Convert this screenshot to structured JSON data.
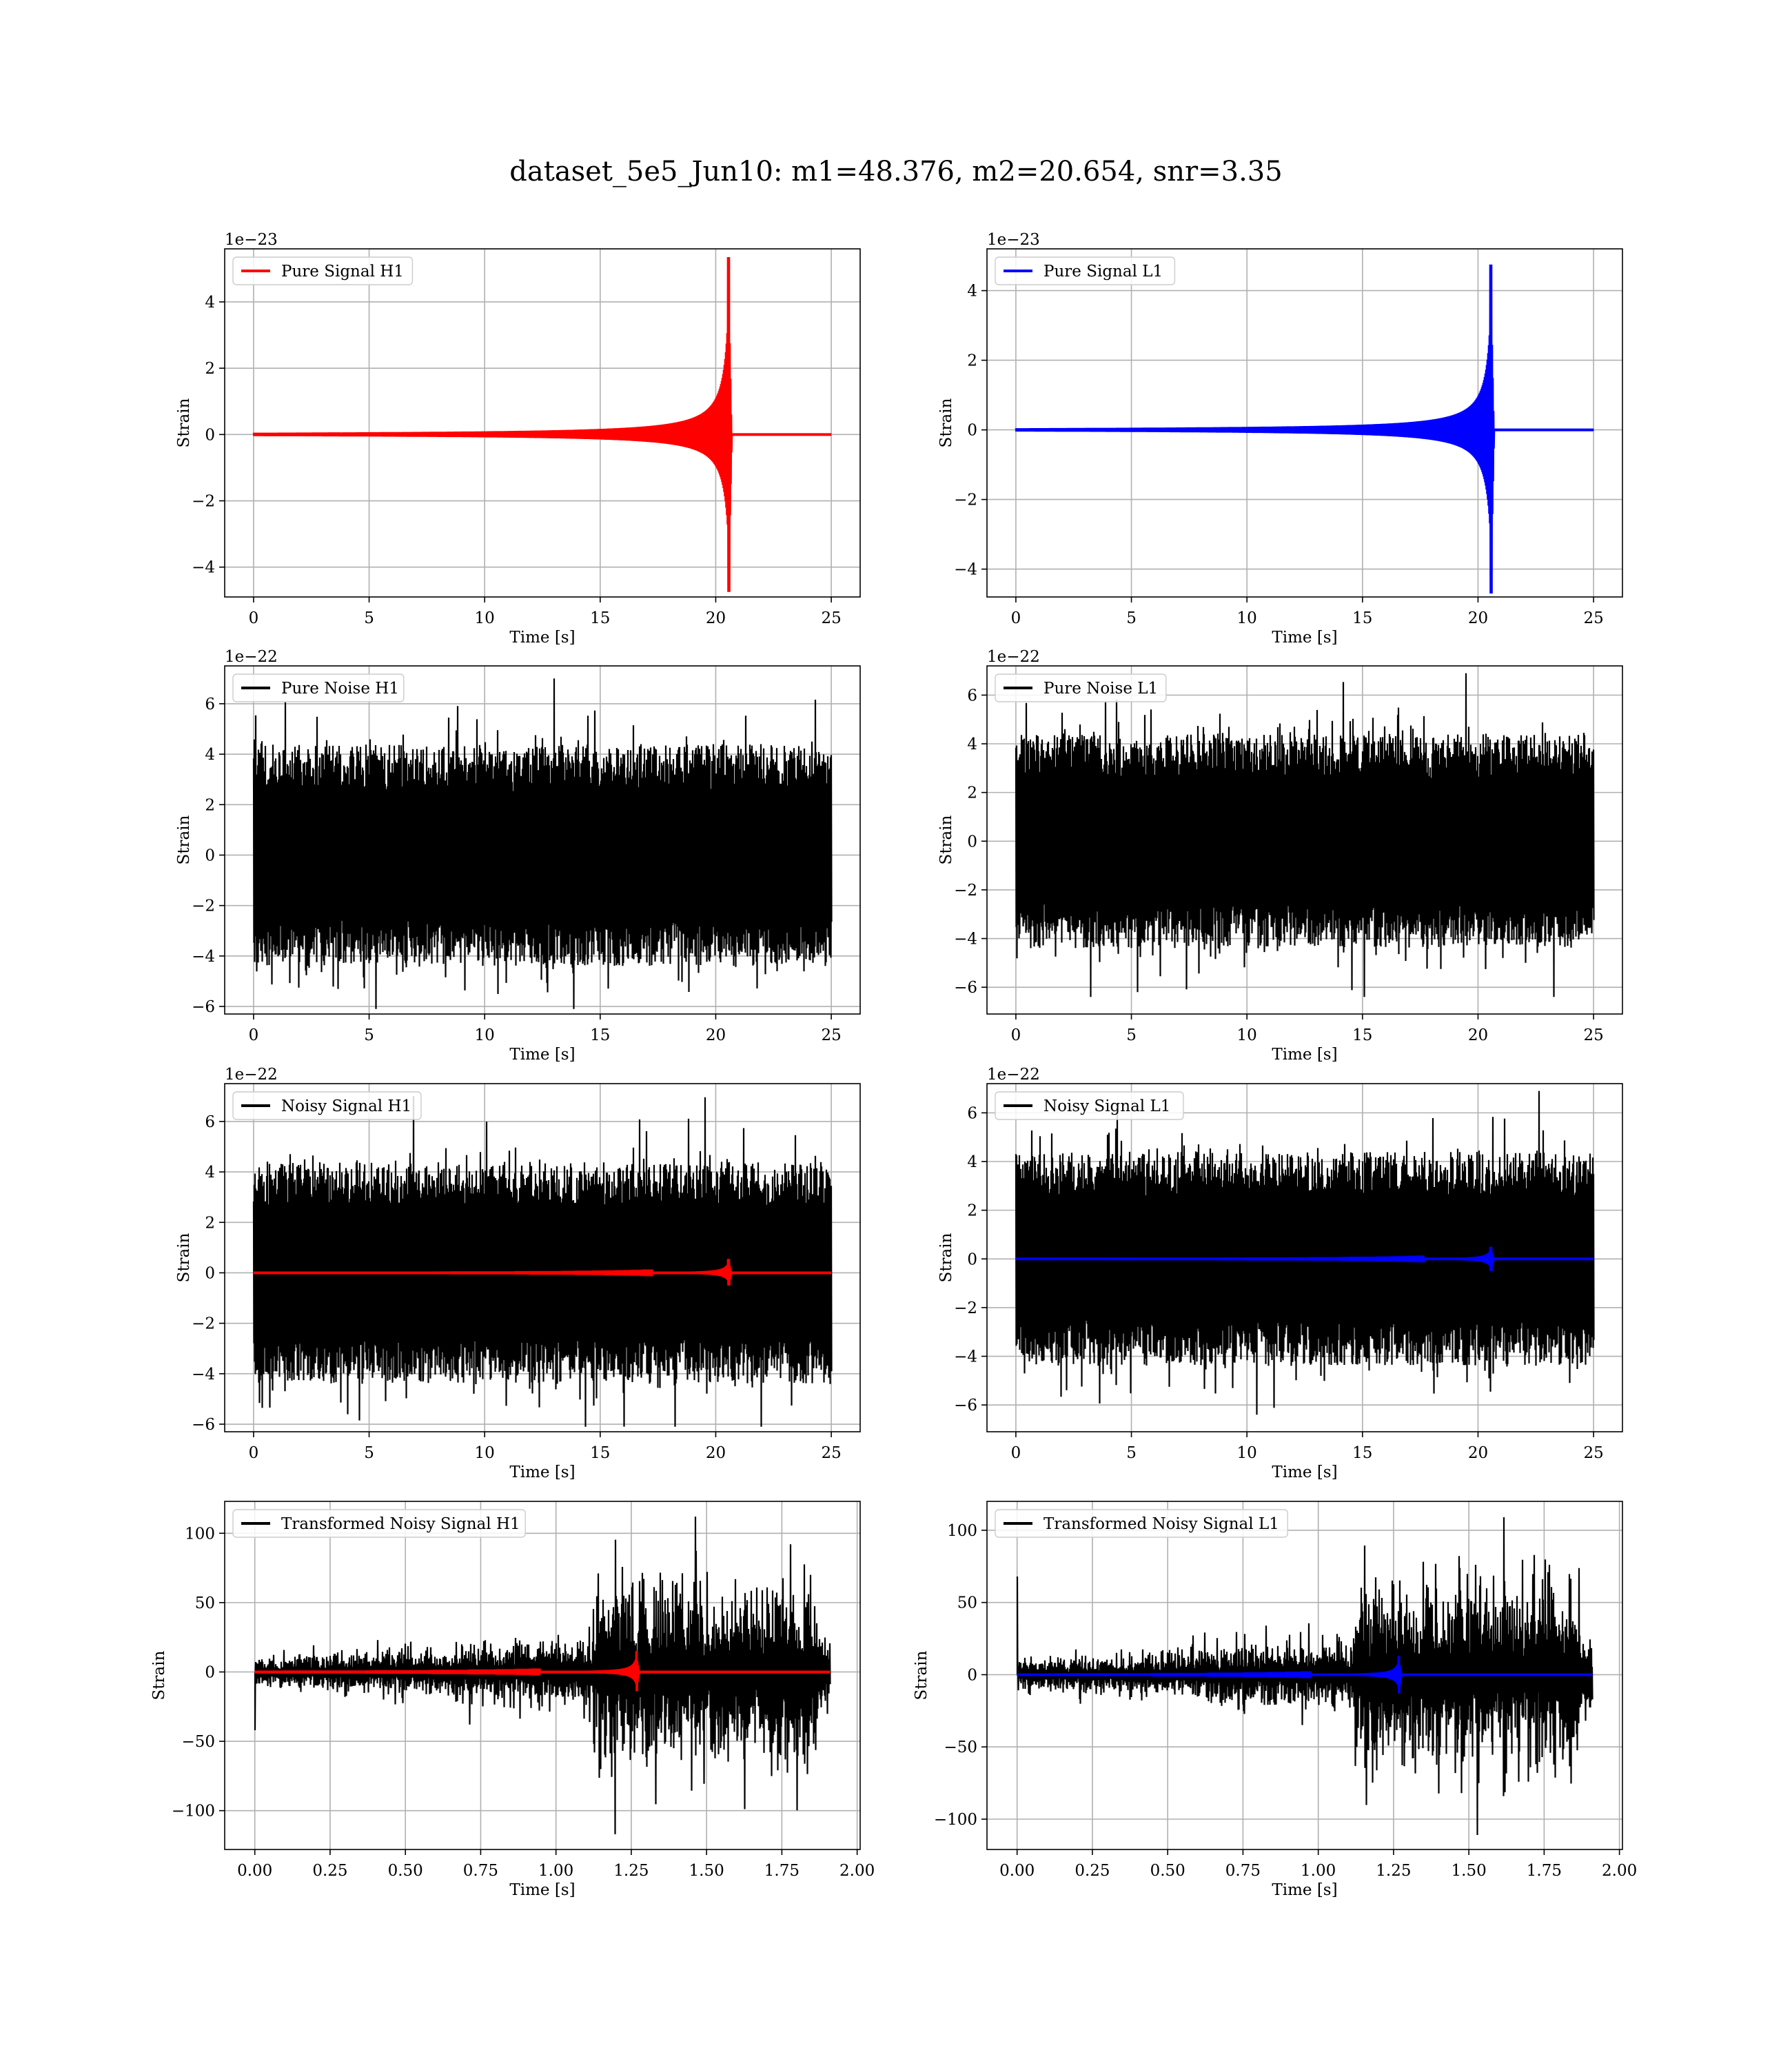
{
  "figure": {
    "title": "dataset_5e5_Jun10: m1=48.376, m2=20.654, snr=3.35"
  },
  "colors": {
    "h1_signal": "#ff0000",
    "l1_signal": "#0000ff",
    "noise": "#000000",
    "grid": "#b0b0b0"
  },
  "chart_data": [
    {
      "id": "pure-signal-h1",
      "type": "line",
      "legend": "Pure Signal H1",
      "xlabel": "Time [s]",
      "ylabel": "Strain",
      "offset_text": "1e−23",
      "xlim": [
        -1.25,
        26.25
      ],
      "ylim": [
        -4.9,
        5.6
      ],
      "xticks": [
        0,
        5,
        10,
        15,
        20,
        25
      ],
      "xtick_labels": [
        "0",
        "5",
        "10",
        "15",
        "20",
        "25"
      ],
      "yticks": [
        -4,
        -2,
        0,
        2,
        4
      ],
      "ytick_labels": [
        "−4",
        "−2",
        "0",
        "2",
        "4"
      ],
      "series": [
        {
          "kind": "chirp",
          "color": "#ff0000",
          "t_start": 0,
          "t_end": 25,
          "merger": 20.6,
          "peak": 5.35,
          "trough": -4.75
        }
      ]
    },
    {
      "id": "pure-signal-l1",
      "type": "line",
      "legend": "Pure Signal L1",
      "xlabel": "Time [s]",
      "ylabel": "Strain",
      "offset_text": "1e−23",
      "xlim": [
        -1.25,
        26.25
      ],
      "ylim": [
        -4.8,
        5.2
      ],
      "xticks": [
        0,
        5,
        10,
        15,
        20,
        25
      ],
      "xtick_labels": [
        "0",
        "5",
        "10",
        "15",
        "20",
        "25"
      ],
      "yticks": [
        -4,
        -2,
        0,
        2,
        4
      ],
      "ytick_labels": [
        "−4",
        "−2",
        "0",
        "2",
        "4"
      ],
      "series": [
        {
          "kind": "chirp",
          "color": "#0000ff",
          "t_start": 0,
          "t_end": 25,
          "merger": 20.6,
          "peak": 4.75,
          "trough": -4.7
        }
      ]
    },
    {
      "id": "pure-noise-h1",
      "type": "line",
      "legend": "Pure Noise H1",
      "xlabel": "Time [s]",
      "ylabel": "Strain",
      "offset_text": "1e−22",
      "xlim": [
        -1.25,
        26.25
      ],
      "ylim": [
        -6.3,
        7.5
      ],
      "xticks": [
        0,
        5,
        10,
        15,
        20,
        25
      ],
      "xtick_labels": [
        "0",
        "5",
        "10",
        "15",
        "20",
        "25"
      ],
      "yticks": [
        -6,
        -4,
        -2,
        0,
        2,
        4,
        6
      ],
      "ytick_labels": [
        "−6",
        "−4",
        "−2",
        "0",
        "2",
        "4",
        "6"
      ],
      "series": [
        {
          "kind": "noise",
          "color": "#000000",
          "t_start": 0,
          "t_end": 25,
          "max": 7.0,
          "min": -6.1
        }
      ]
    },
    {
      "id": "pure-noise-l1",
      "type": "line",
      "legend": "Pure Noise L1",
      "xlabel": "Time [s]",
      "ylabel": "Strain",
      "offset_text": "1e−22",
      "xlim": [
        -1.25,
        26.25
      ],
      "ylim": [
        -7.1,
        7.2
      ],
      "xticks": [
        0,
        5,
        10,
        15,
        20,
        25
      ],
      "xtick_labels": [
        "0",
        "5",
        "10",
        "15",
        "20",
        "25"
      ],
      "yticks": [
        -6,
        -4,
        -2,
        0,
        2,
        4,
        6
      ],
      "ytick_labels": [
        "−6",
        "−4",
        "−2",
        "0",
        "2",
        "4",
        "6"
      ],
      "series": [
        {
          "kind": "noise",
          "color": "#000000",
          "t_start": 0,
          "t_end": 25,
          "max": 6.9,
          "min": -6.4
        }
      ]
    },
    {
      "id": "noisy-signal-h1",
      "type": "line",
      "legend": "Noisy Signal H1",
      "xlabel": "Time [s]",
      "ylabel": "Strain",
      "offset_text": "1e−22",
      "xlim": [
        -1.25,
        26.25
      ],
      "ylim": [
        -6.3,
        7.5
      ],
      "xticks": [
        0,
        5,
        10,
        15,
        20,
        25
      ],
      "xtick_labels": [
        "0",
        "5",
        "10",
        "15",
        "20",
        "25"
      ],
      "yticks": [
        -6,
        -4,
        -2,
        0,
        2,
        4,
        6
      ],
      "ytick_labels": [
        "−6",
        "−4",
        "−2",
        "0",
        "2",
        "4",
        "6"
      ],
      "series": [
        {
          "kind": "noise",
          "color": "#000000",
          "t_start": 0,
          "t_end": 25,
          "max": 7.0,
          "min": -6.1
        },
        {
          "kind": "chirp",
          "color": "#ff0000",
          "t_start": 0,
          "t_end": 25,
          "merger": 20.6,
          "peak": 0.55,
          "trough": -0.5
        }
      ]
    },
    {
      "id": "noisy-signal-l1",
      "type": "line",
      "legend": "Noisy Signal L1",
      "xlabel": "Time [s]",
      "ylabel": "Strain",
      "offset_text": "1e−22",
      "xlim": [
        -1.25,
        26.25
      ],
      "ylim": [
        -7.1,
        7.2
      ],
      "xticks": [
        0,
        5,
        10,
        15,
        20,
        25
      ],
      "xtick_labels": [
        "0",
        "5",
        "10",
        "15",
        "20",
        "25"
      ],
      "yticks": [
        -6,
        -4,
        -2,
        0,
        2,
        4,
        6
      ],
      "ytick_labels": [
        "−6",
        "−4",
        "−2",
        "0",
        "2",
        "4",
        "6"
      ],
      "series": [
        {
          "kind": "noise",
          "color": "#000000",
          "t_start": 0,
          "t_end": 25,
          "max": 6.9,
          "min": -6.4
        },
        {
          "kind": "chirp",
          "color": "#0000ff",
          "t_start": 0,
          "t_end": 25,
          "merger": 20.6,
          "peak": 0.5,
          "trough": -0.5
        }
      ]
    },
    {
      "id": "transformed-noisy-signal-h1",
      "type": "line",
      "legend": "Transformed Noisy Signal H1",
      "xlabel": "Time [s]",
      "ylabel": "Strain",
      "offset_text": "",
      "xlim": [
        -0.1,
        2.01
      ],
      "ylim": [
        -128,
        123
      ],
      "xticks": [
        0,
        0.25,
        0.5,
        0.75,
        1.0,
        1.25,
        1.5,
        1.75,
        2.0
      ],
      "xtick_labels": [
        "0.00",
        "0.25",
        "0.50",
        "0.75",
        "1.00",
        "1.25",
        "1.50",
        "1.75",
        "2.00"
      ],
      "yticks": [
        -100,
        -50,
        0,
        50,
        100
      ],
      "ytick_labels": [
        "−100",
        "−50",
        "0",
        "50",
        "100"
      ],
      "series": [
        {
          "kind": "whitened",
          "color": "#000000",
          "t_start": 0,
          "t_end": 1.91,
          "burst_start": 1.12,
          "burst_end": 1.87,
          "max": 112,
          "min": -117,
          "initial": -42
        },
        {
          "kind": "chirp",
          "color": "#ff0000",
          "t_start": 0,
          "t_end": 1.91,
          "merger": 1.27,
          "peak": 15,
          "trough": -14
        }
      ]
    },
    {
      "id": "transformed-noisy-signal-l1",
      "type": "line",
      "legend": "Transformed Noisy Signal L1",
      "xlabel": "Time [s]",
      "ylabel": "Strain",
      "offset_text": "",
      "xlim": [
        -0.1,
        2.01
      ],
      "ylim": [
        -121,
        120
      ],
      "xticks": [
        0,
        0.25,
        0.5,
        0.75,
        1.0,
        1.25,
        1.5,
        1.75,
        2.0
      ],
      "xtick_labels": [
        "0.00",
        "0.25",
        "0.50",
        "0.75",
        "1.00",
        "1.25",
        "1.50",
        "1.75",
        "2.00"
      ],
      "yticks": [
        -100,
        -50,
        0,
        50,
        100
      ],
      "ytick_labels": [
        "−100",
        "−50",
        "0",
        "50",
        "100"
      ],
      "series": [
        {
          "kind": "whitened",
          "color": "#000000",
          "t_start": 0,
          "t_end": 1.91,
          "burst_start": 1.12,
          "burst_end": 1.87,
          "max": 109,
          "min": -111,
          "initial": 68
        },
        {
          "kind": "chirp",
          "color": "#0000ff",
          "t_start": 0,
          "t_end": 1.91,
          "merger": 1.27,
          "peak": 13,
          "trough": -13
        }
      ]
    }
  ]
}
